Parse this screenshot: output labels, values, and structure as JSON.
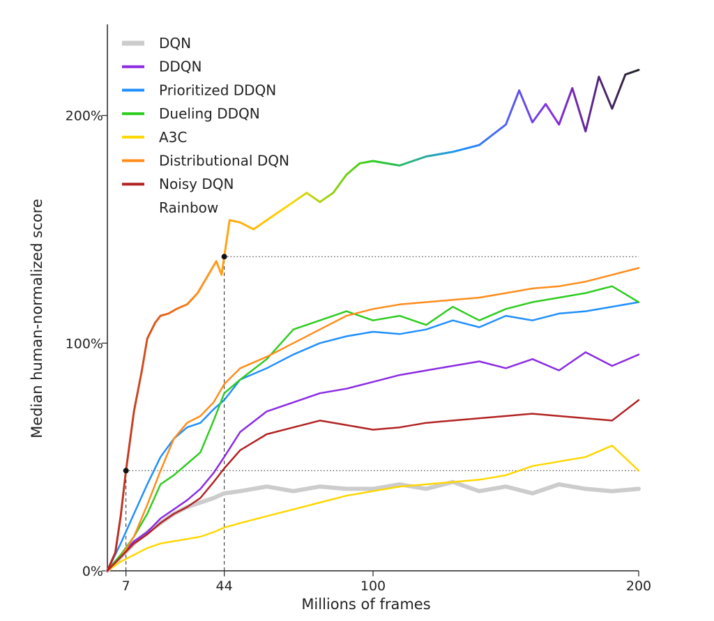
{
  "chart_data": {
    "type": "line",
    "xlabel": "Millions of frames",
    "ylabel": "Median human-normalized score",
    "xlim": [
      0,
      200
    ],
    "ylim": [
      0,
      2.4
    ],
    "x_ticks": [
      7,
      44,
      100,
      200
    ],
    "x_tick_labels": [
      "7",
      "44",
      "100",
      "200"
    ],
    "y_ticks": [
      0,
      1,
      2
    ],
    "y_tick_labels": [
      "0%",
      "100%",
      "200%"
    ],
    "legend_position": "top-left",
    "grid": false,
    "reference_lines": [
      {
        "type": "horizontal",
        "y": 0.44,
        "x_from": 7,
        "x_to": 200,
        "style": "dotted"
      },
      {
        "type": "horizontal",
        "y": 1.38,
        "x_from": 44,
        "x_to": 200,
        "style": "dotted"
      },
      {
        "type": "vertical",
        "x": 7,
        "y_from": 0,
        "y_to": 0.44,
        "style": "dashed"
      },
      {
        "type": "vertical",
        "x": 44,
        "y_from": 0,
        "y_to": 1.38,
        "style": "dashed"
      }
    ],
    "markers": [
      {
        "x": 7,
        "y": 0.44
      },
      {
        "x": 44,
        "y": 1.38
      }
    ],
    "series": [
      {
        "name": "DQN",
        "color": "#cccccc",
        "x": [
          0,
          5,
          10,
          15,
          20,
          25,
          30,
          35,
          40,
          44,
          50,
          60,
          70,
          80,
          90,
          100,
          110,
          120,
          130,
          140,
          150,
          160,
          170,
          180,
          190,
          200
        ],
        "y": [
          0,
          0.06,
          0.12,
          0.17,
          0.21,
          0.25,
          0.28,
          0.3,
          0.32,
          0.34,
          0.35,
          0.37,
          0.35,
          0.37,
          0.36,
          0.36,
          0.38,
          0.36,
          0.39,
          0.35,
          0.37,
          0.34,
          0.38,
          0.36,
          0.35,
          0.36
        ]
      },
      {
        "name": "DDQN",
        "color": "#8a2be2",
        "x": [
          0,
          5,
          10,
          15,
          20,
          25,
          30,
          35,
          40,
          44,
          50,
          60,
          70,
          80,
          90,
          100,
          110,
          120,
          130,
          140,
          150,
          160,
          170,
          180,
          190,
          200
        ],
        "y": [
          0,
          0.07,
          0.13,
          0.17,
          0.23,
          0.27,
          0.31,
          0.36,
          0.43,
          0.5,
          0.61,
          0.7,
          0.74,
          0.78,
          0.8,
          0.83,
          0.86,
          0.88,
          0.9,
          0.92,
          0.89,
          0.93,
          0.88,
          0.96,
          0.9,
          0.95
        ]
      },
      {
        "name": "Prioritized DDQN",
        "color": "#1f8fff",
        "x": [
          0,
          5,
          10,
          15,
          20,
          25,
          30,
          35,
          40,
          44,
          50,
          60,
          70,
          80,
          90,
          100,
          110,
          120,
          130,
          140,
          150,
          160,
          170,
          180,
          190,
          200
        ],
        "y": [
          0,
          0.12,
          0.25,
          0.38,
          0.5,
          0.58,
          0.63,
          0.65,
          0.71,
          0.75,
          0.84,
          0.89,
          0.95,
          1.0,
          1.03,
          1.05,
          1.04,
          1.06,
          1.1,
          1.07,
          1.12,
          1.1,
          1.13,
          1.14,
          1.16,
          1.18
        ]
      },
      {
        "name": "Dueling DDQN",
        "color": "#2ecc1f",
        "x": [
          0,
          5,
          10,
          15,
          20,
          25,
          30,
          35,
          40,
          44,
          50,
          60,
          70,
          80,
          90,
          100,
          110,
          120,
          130,
          140,
          150,
          160,
          170,
          180,
          190,
          200
        ],
        "y": [
          0,
          0.07,
          0.15,
          0.25,
          0.38,
          0.42,
          0.47,
          0.52,
          0.66,
          0.78,
          0.84,
          0.93,
          1.06,
          1.1,
          1.14,
          1.1,
          1.12,
          1.08,
          1.16,
          1.1,
          1.15,
          1.18,
          1.2,
          1.22,
          1.25,
          1.18
        ]
      },
      {
        "name": "A3C",
        "color": "#ffd700",
        "x": [
          0,
          5,
          10,
          15,
          20,
          25,
          30,
          35,
          40,
          44,
          50,
          60,
          70,
          80,
          90,
          100,
          110,
          120,
          130,
          140,
          150,
          160,
          170,
          180,
          190,
          200
        ],
        "y": [
          0,
          0.04,
          0.07,
          0.1,
          0.12,
          0.13,
          0.14,
          0.15,
          0.17,
          0.19,
          0.21,
          0.24,
          0.27,
          0.3,
          0.33,
          0.35,
          0.37,
          0.38,
          0.39,
          0.4,
          0.42,
          0.46,
          0.48,
          0.5,
          0.55,
          0.44
        ]
      },
      {
        "name": "Distributional DQN",
        "color": "#ff8c1a",
        "x": [
          0,
          5,
          10,
          15,
          20,
          25,
          30,
          35,
          40,
          44,
          50,
          60,
          70,
          80,
          90,
          100,
          110,
          120,
          130,
          140,
          150,
          160,
          170,
          180,
          190,
          200
        ],
        "y": [
          0,
          0.06,
          0.15,
          0.29,
          0.44,
          0.58,
          0.65,
          0.68,
          0.74,
          0.82,
          0.89,
          0.94,
          1.0,
          1.06,
          1.12,
          1.15,
          1.17,
          1.18,
          1.19,
          1.2,
          1.22,
          1.24,
          1.25,
          1.27,
          1.3,
          1.33
        ]
      },
      {
        "name": "Noisy DQN",
        "color": "#b22222",
        "x": [
          0,
          5,
          10,
          15,
          20,
          25,
          30,
          35,
          40,
          44,
          50,
          60,
          70,
          80,
          90,
          100,
          110,
          120,
          130,
          140,
          150,
          160,
          170,
          180,
          190,
          200
        ],
        "y": [
          0,
          0.06,
          0.12,
          0.16,
          0.21,
          0.25,
          0.28,
          0.32,
          0.39,
          0.45,
          0.53,
          0.6,
          0.63,
          0.66,
          0.64,
          0.62,
          0.63,
          0.65,
          0.66,
          0.67,
          0.68,
          0.69,
          0.68,
          0.67,
          0.66,
          0.75
        ]
      },
      {
        "name": "Rainbow",
        "color": "rainbow",
        "x": [
          0,
          3,
          5,
          7,
          10,
          13,
          15,
          18,
          20,
          23,
          26,
          30,
          34,
          38,
          41,
          43,
          44,
          46,
          50,
          55,
          60,
          65,
          70,
          75,
          80,
          85,
          90,
          95,
          100,
          110,
          120,
          130,
          140,
          150,
          155,
          160,
          165,
          170,
          175,
          180,
          185,
          190,
          195,
          200
        ],
        "y": [
          0,
          0.08,
          0.24,
          0.44,
          0.7,
          0.88,
          1.02,
          1.09,
          1.12,
          1.13,
          1.15,
          1.17,
          1.22,
          1.3,
          1.36,
          1.3,
          1.38,
          1.54,
          1.53,
          1.5,
          1.54,
          1.58,
          1.62,
          1.66,
          1.62,
          1.66,
          1.74,
          1.79,
          1.8,
          1.78,
          1.82,
          1.84,
          1.87,
          1.96,
          2.11,
          1.97,
          2.05,
          1.96,
          2.12,
          1.93,
          2.17,
          2.03,
          2.18,
          2.2
        ]
      }
    ]
  }
}
